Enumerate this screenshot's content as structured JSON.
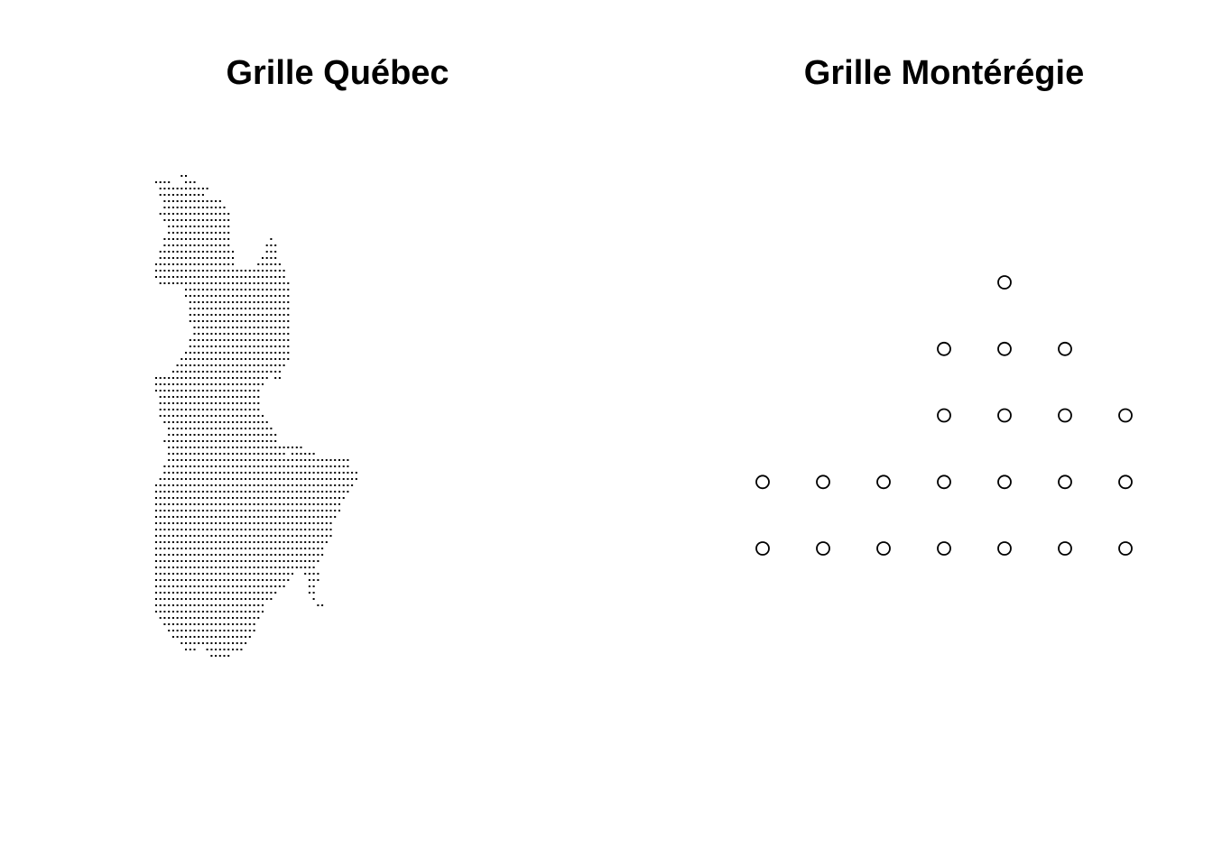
{
  "chart_data": [
    {
      "type": "scatter",
      "title": "Grille Québec",
      "xlabel": "",
      "ylabel": "",
      "axes": false,
      "grid": false,
      "marker": "point",
      "marker_color": "#000000",
      "description_of_points": "dense regular grid of tiny points filling the outline of the Québec region",
      "rows": [
        [
          0,
          [
            [
              6,
              7
            ]
          ]
        ],
        [
          1,
          [
            [
              0,
              3
            ],
            [
              7,
              9
            ]
          ]
        ],
        [
          2,
          [
            [
              1,
              8
            ],
            [
              9,
              12
            ]
          ]
        ],
        [
          3,
          [
            [
              1,
              11
            ]
          ]
        ],
        [
          4,
          [
            [
              2,
              15
            ]
          ]
        ],
        [
          5,
          [
            [
              2,
              16
            ]
          ]
        ],
        [
          6,
          [
            [
              1,
              17
            ]
          ]
        ],
        [
          7,
          [
            [
              2,
              17
            ]
          ]
        ],
        [
          8,
          [
            [
              3,
              17
            ]
          ]
        ],
        [
          9,
          [
            [
              3,
              17
            ]
          ]
        ],
        [
          10,
          [
            [
              2,
              17
            ],
            [
              27,
              27
            ]
          ]
        ],
        [
          11,
          [
            [
              2,
              17
            ],
            [
              26,
              28
            ]
          ]
        ],
        [
          12,
          [
            [
              1,
              18
            ],
            [
              26,
              28
            ]
          ]
        ],
        [
          13,
          [
            [
              1,
              18
            ],
            [
              25,
              28
            ]
          ]
        ],
        [
          14,
          [
            [
              0,
              18
            ],
            [
              24,
              29
            ]
          ]
        ],
        [
          15,
          [
            [
              0,
              21
            ],
            [
              22,
              30
            ]
          ]
        ],
        [
          16,
          [
            [
              0,
              22
            ],
            [
              23,
              30
            ]
          ]
        ],
        [
          17,
          [
            [
              1,
              31
            ]
          ]
        ],
        [
          18,
          [
            [
              7,
              31
            ]
          ]
        ],
        [
          19,
          [
            [
              7,
              31
            ]
          ]
        ],
        [
          20,
          [
            [
              8,
              31
            ]
          ]
        ],
        [
          21,
          [
            [
              8,
              31
            ]
          ]
        ],
        [
          22,
          [
            [
              8,
              31
            ]
          ]
        ],
        [
          23,
          [
            [
              8,
              31
            ]
          ]
        ],
        [
          24,
          [
            [
              9,
              31
            ]
          ]
        ],
        [
          25,
          [
            [
              9,
              31
            ]
          ]
        ],
        [
          26,
          [
            [
              8,
              31
            ]
          ]
        ],
        [
          27,
          [
            [
              8,
              31
            ]
          ]
        ],
        [
          28,
          [
            [
              7,
              31
            ]
          ]
        ],
        [
          29,
          [
            [
              6,
              31
            ]
          ]
        ],
        [
          30,
          [
            [
              5,
              30
            ]
          ]
        ],
        [
          31,
          [
            [
              4,
              29
            ]
          ]
        ],
        [
          32,
          [
            [
              0,
              26
            ],
            [
              28,
              29
            ]
          ]
        ],
        [
          33,
          [
            [
              0,
              25
            ]
          ]
        ],
        [
          34,
          [
            [
              0,
              24
            ]
          ]
        ],
        [
          35,
          [
            [
              1,
              24
            ]
          ]
        ],
        [
          36,
          [
            [
              1,
              24
            ]
          ]
        ],
        [
          37,
          [
            [
              1,
              24
            ]
          ]
        ],
        [
          38,
          [
            [
              1,
              25
            ]
          ]
        ],
        [
          39,
          [
            [
              2,
              26
            ]
          ]
        ],
        [
          40,
          [
            [
              3,
              27
            ]
          ]
        ],
        [
          41,
          [
            [
              3,
              28
            ]
          ]
        ],
        [
          42,
          [
            [
              2,
              28
            ]
          ]
        ],
        [
          43,
          [
            [
              3,
              30
            ],
            [
              31,
              34
            ]
          ]
        ],
        [
          44,
          [
            [
              3,
              30
            ],
            [
              32,
              37
            ]
          ]
        ],
        [
          45,
          [
            [
              3,
              31
            ],
            [
              32,
              41
            ],
            [
              42,
              45
            ]
          ]
        ],
        [
          46,
          [
            [
              2,
              31
            ],
            [
              32,
              45
            ]
          ]
        ],
        [
          47,
          [
            [
              2,
              32
            ],
            [
              33,
              47
            ]
          ]
        ],
        [
          48,
          [
            [
              1,
              32
            ],
            [
              33,
              47
            ]
          ]
        ],
        [
          49,
          [
            [
              0,
              46
            ]
          ]
        ],
        [
          50,
          [
            [
              0,
              45
            ]
          ]
        ],
        [
          51,
          [
            [
              0,
              44
            ]
          ]
        ],
        [
          52,
          [
            [
              0,
              43
            ]
          ]
        ],
        [
          53,
          [
            [
              0,
              43
            ]
          ]
        ],
        [
          54,
          [
            [
              0,
              42
            ]
          ]
        ],
        [
          55,
          [
            [
              0,
              41
            ]
          ]
        ],
        [
          56,
          [
            [
              0,
              41
            ]
          ]
        ],
        [
          57,
          [
            [
              0,
              41
            ]
          ]
        ],
        [
          58,
          [
            [
              0,
              40
            ]
          ]
        ],
        [
          59,
          [
            [
              0,
              39
            ]
          ]
        ],
        [
          60,
          [
            [
              0,
              39
            ]
          ]
        ],
        [
          61,
          [
            [
              0,
              38
            ]
          ]
        ],
        [
          62,
          [
            [
              0,
              37
            ]
          ]
        ],
        [
          63,
          [
            [
              0,
              32
            ],
            [
              35,
              38
            ]
          ]
        ],
        [
          64,
          [
            [
              0,
              31
            ],
            [
              36,
              38
            ]
          ]
        ],
        [
          65,
          [
            [
              0,
              30
            ],
            [
              36,
              37
            ]
          ]
        ],
        [
          66,
          [
            [
              0,
              28
            ],
            [
              36,
              37
            ]
          ]
        ],
        [
          67,
          [
            [
              0,
              27
            ],
            [
              37,
              37
            ]
          ]
        ],
        [
          68,
          [
            [
              0,
              25
            ],
            [
              38,
              39
            ]
          ]
        ],
        [
          69,
          [
            [
              0,
              25
            ]
          ]
        ],
        [
          70,
          [
            [
              1,
              24
            ]
          ]
        ],
        [
          71,
          [
            [
              2,
              23
            ]
          ]
        ],
        [
          72,
          [
            [
              3,
              23
            ]
          ]
        ],
        [
          73,
          [
            [
              4,
              22
            ]
          ]
        ],
        [
          74,
          [
            [
              6,
              21
            ]
          ]
        ],
        [
          75,
          [
            [
              7,
              9
            ],
            [
              12,
              20
            ]
          ]
        ],
        [
          76,
          [
            [
              13,
              17
            ]
          ]
        ]
      ],
      "grid_origin": [
        0,
        0
      ],
      "grid_step": [
        1,
        1
      ]
    },
    {
      "type": "scatter",
      "title": "Grille Montérégie",
      "xlabel": "",
      "ylabel": "",
      "axes": false,
      "grid": false,
      "marker": "open-circle",
      "marker_color": "#000000",
      "x": [
        5,
        4,
        5,
        6,
        4,
        5,
        6,
        7,
        1,
        2,
        3,
        4,
        5,
        6,
        7,
        1,
        2,
        3,
        4,
        5,
        6,
        7
      ],
      "y": [
        5,
        4,
        4,
        4,
        3,
        3,
        3,
        3,
        2,
        2,
        2,
        2,
        2,
        2,
        2,
        1,
        1,
        1,
        1,
        1,
        1,
        1
      ],
      "xlim": [
        1,
        7
      ],
      "ylim": [
        1,
        5
      ]
    }
  ]
}
